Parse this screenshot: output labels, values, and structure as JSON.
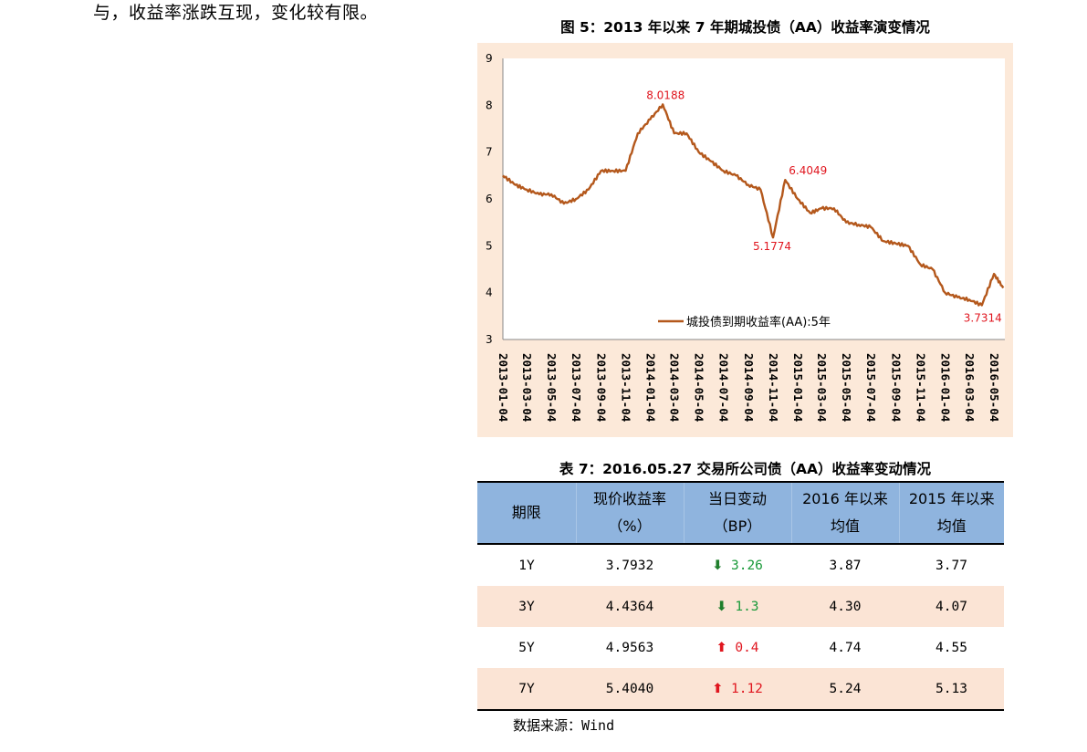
{
  "intro_text": "与，收益率涨跌互现，变化较有限。",
  "figure": {
    "title": "图 5：2013 年以来 7 年期城投债（AA）收益率演变情况",
    "chart_data": {
      "type": "line",
      "title": "",
      "xlabel": "",
      "ylabel": "",
      "ylim": [
        3,
        9
      ],
      "y_ticks": [
        "3",
        "4",
        "5",
        "6",
        "7",
        "8",
        "9"
      ],
      "x_tick_labels": [
        "2013-01-04",
        "2013-03-04",
        "2013-05-04",
        "2013-07-04",
        "2013-09-04",
        "2013-11-04",
        "2014-01-04",
        "2014-03-04",
        "2014-05-04",
        "2014-07-04",
        "2014-09-04",
        "2014-11-04",
        "2015-01-04",
        "2015-03-04",
        "2015-05-04",
        "2015-07-04",
        "2015-09-04",
        "2015-11-04",
        "2016-01-04",
        "2016-03-04",
        "2016-05-04"
      ],
      "legend": "bottom-center",
      "grid": false,
      "series": [
        {
          "name": "城投债到期收益率(AA):5年",
          "color": "#b4581c",
          "x": [
            "2013-01-04",
            "2013-02-04",
            "2013-03-04",
            "2013-04-04",
            "2013-05-04",
            "2013-06-04",
            "2013-07-04",
            "2013-08-04",
            "2013-09-04",
            "2013-10-04",
            "2013-11-04",
            "2013-12-04",
            "2014-01-04",
            "2014-02-04",
            "2014-03-04",
            "2014-04-04",
            "2014-05-04",
            "2014-06-04",
            "2014-07-04",
            "2014-08-04",
            "2014-09-04",
            "2014-10-04",
            "2014-11-04",
            "2014-12-04",
            "2015-01-04",
            "2015-02-04",
            "2015-03-04",
            "2015-04-04",
            "2015-05-04",
            "2015-06-04",
            "2015-07-04",
            "2015-08-04",
            "2015-09-04",
            "2015-10-04",
            "2015-11-04",
            "2015-12-04",
            "2016-01-04",
            "2016-02-04",
            "2016-03-04",
            "2016-04-04",
            "2016-05-04",
            "2016-05-27"
          ],
          "values": [
            6.5,
            6.3,
            6.2,
            6.1,
            6.1,
            5.9,
            6.0,
            6.2,
            6.6,
            6.6,
            6.6,
            7.4,
            7.7,
            8.0188,
            7.4,
            7.4,
            7.0,
            6.8,
            6.6,
            6.5,
            6.3,
            6.2,
            5.1774,
            6.4049,
            6.0,
            5.7,
            5.8,
            5.8,
            5.5,
            5.45,
            5.4,
            5.1,
            5.05,
            5.0,
            4.6,
            4.5,
            4.0,
            3.9,
            3.85,
            3.7314,
            4.4,
            4.1
          ]
        }
      ],
      "annotations": [
        {
          "x": "2014-02-04",
          "label": "8.0188"
        },
        {
          "x": "2014-11-04",
          "label": "5.1774"
        },
        {
          "x": "2014-12-04",
          "label": "6.4049"
        },
        {
          "x": "2016-04-04",
          "label": "3.7314"
        }
      ]
    }
  },
  "table": {
    "title": "表 7：2016.05.27 交易所公司债（AA）收益率变动情况",
    "headers": [
      {
        "line1": "期限",
        "line2": ""
      },
      {
        "line1": "现价收益率",
        "line2": "（%）"
      },
      {
        "line1": "当日变动",
        "line2": "（BP）"
      },
      {
        "line1": "2016 年以来",
        "line2": "均值"
      },
      {
        "line1": "2015 年以来",
        "line2": "均值"
      }
    ],
    "rows": [
      {
        "term": "1Y",
        "yield": "3.7932",
        "direction": "down",
        "change": "3.26",
        "avg2016": "3.87",
        "avg2015": "3.77"
      },
      {
        "term": "3Y",
        "yield": "4.4364",
        "direction": "down",
        "change": "1.3",
        "avg2016": "4.30",
        "avg2015": "4.07"
      },
      {
        "term": "5Y",
        "yield": "4.9563",
        "direction": "up",
        "change": "0.4",
        "avg2016": "4.74",
        "avg2015": "4.55"
      },
      {
        "term": "7Y",
        "yield": "5.4040",
        "direction": "up",
        "change": "1.12",
        "avg2016": "5.24",
        "avg2015": "5.13"
      }
    ],
    "arrow_down_icon": "⬇",
    "arrow_up_icon": "⬆"
  },
  "source": "数据来源：Wind"
}
